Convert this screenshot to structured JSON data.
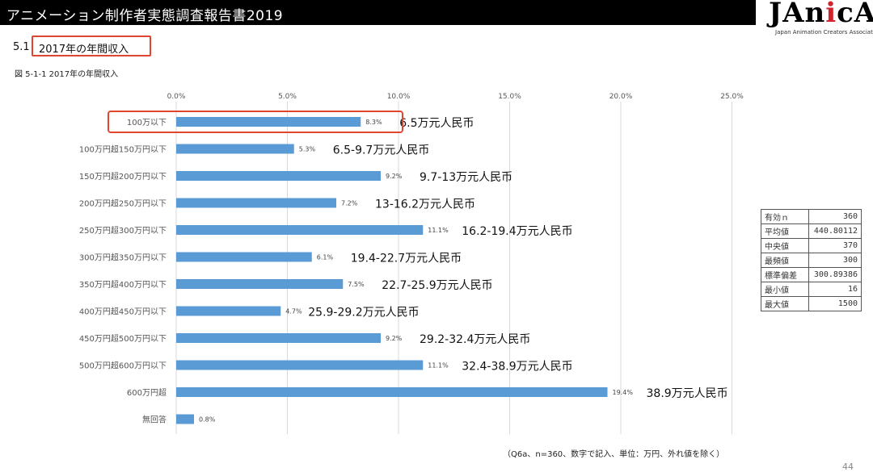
{
  "header": {
    "title": "アニメーション制作者実態調査報告書2019",
    "logo_text": "JAnicA",
    "logo_subtitle": "Japan Animation Creators Association"
  },
  "section": {
    "number": "5.1",
    "title": "2017年の年間収入"
  },
  "figure_label": "図 5-1-1  2017年の年間収入",
  "footnote": "（Q6a、n=360、数字で記入、単位：万円、外れ値を除く）",
  "page_number": "44",
  "colors": {
    "bar": "#5b9bd5",
    "highlight": "#e0462f",
    "grid": "#d9d9d9"
  },
  "chart_data": {
    "type": "bar",
    "orientation": "horizontal",
    "x_ticks": [
      "0.0%",
      "5.0%",
      "10.0%",
      "15.0%",
      "20.0%",
      "25.0%"
    ],
    "xlim": [
      0,
      25
    ],
    "grid": true,
    "categories": [
      "100万以下",
      "100万円超150万円以下",
      "150万円超200万円以下",
      "200万円超250万円以下",
      "250万円超300万円以下",
      "300万円超350万円以下",
      "350万円超400万円以下",
      "400万円超450万円以下",
      "450万円超500万円以下",
      "500万円超600万円以下",
      "600万円超",
      "無回答"
    ],
    "values": [
      8.3,
      5.3,
      9.2,
      7.2,
      11.1,
      6.1,
      7.5,
      4.7,
      9.2,
      11.1,
      19.4,
      0.8
    ],
    "value_labels": [
      "8.3%",
      "5.3%",
      "9.2%",
      "7.2%",
      "11.1%",
      "6.1%",
      "7.5%",
      "4.7%",
      "9.2%",
      "11.1%",
      "19.4%",
      "0.8%"
    ],
    "annotations": [
      "6.5万元人民币",
      "6.5-9.7万元人民币",
      "9.7-13万元人民币",
      "13-16.2万元人民币",
      "16.2-19.4万元人民币",
      "19.4-22.7万元人民币",
      "22.7-25.9万元人民币",
      "25.9-29.2万元人民币",
      "29.2-32.4万元人民币",
      "32.4-38.9万元人民币",
      "38.9万元人民币",
      ""
    ],
    "highlighted_index": 0
  },
  "stats_table": [
    {
      "label": "有効ｎ",
      "value": "360"
    },
    {
      "label": "平均値",
      "value": "440.80112"
    },
    {
      "label": "中央値",
      "value": "370"
    },
    {
      "label": "最頻値",
      "value": "300"
    },
    {
      "label": "標準偏差",
      "value": "300.89386"
    },
    {
      "label": "最小値",
      "value": "16"
    },
    {
      "label": "最大値",
      "value": "1500"
    }
  ]
}
